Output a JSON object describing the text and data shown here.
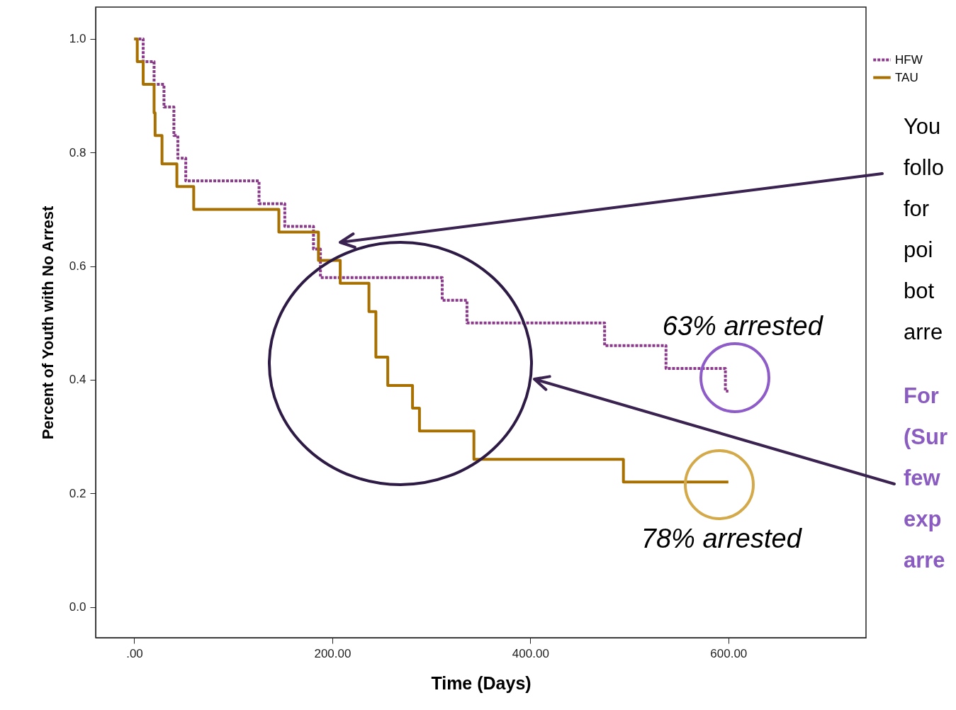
{
  "chart_data": {
    "type": "step",
    "xlabel": "Time (Days)",
    "ylabel": "Percent of Youth with No Arrest",
    "xlim": [
      -39,
      739
    ],
    "ylim": [
      -0.054,
      1.056
    ],
    "xticks": [
      {
        "value": 0,
        "label": ".00"
      },
      {
        "value": 200,
        "label": "200.00"
      },
      {
        "value": 400,
        "label": "400.00"
      },
      {
        "value": 600,
        "label": "600.00"
      }
    ],
    "yticks": [
      {
        "value": 0,
        "label": "0.0"
      },
      0.2,
      0.4,
      0.6,
      0.8,
      {
        "value": 1,
        "label": "1.0"
      }
    ],
    "legend": "top right",
    "grid": false,
    "series": [
      {
        "name": "HFW",
        "color": "#8b3a8b",
        "line_style": "dotted",
        "x": [
          0,
          9,
          20,
          30,
          40,
          44,
          52,
          126,
          152,
          181,
          188,
          311,
          336,
          475,
          537,
          597,
          600
        ],
        "values": [
          1.0,
          0.96,
          0.92,
          0.88,
          0.83,
          0.79,
          0.75,
          0.71,
          0.67,
          0.63,
          0.58,
          0.54,
          0.5,
          0.46,
          0.42,
          0.38,
          0.38
        ]
      },
      {
        "name": "TAU",
        "color": "#a87000",
        "line_style": "solid",
        "x": [
          0,
          3,
          9,
          20,
          21,
          28,
          43,
          60,
          146,
          186,
          208,
          237,
          244,
          256,
          281,
          288,
          343,
          494,
          600
        ],
        "values": [
          1.0,
          0.96,
          0.92,
          0.87,
          0.83,
          0.78,
          0.74,
          0.7,
          0.66,
          0.61,
          0.57,
          0.52,
          0.44,
          0.39,
          0.35,
          0.31,
          0.26,
          0.22,
          0.22
        ]
      }
    ],
    "annotations": [
      {
        "text": "63% arrested",
        "x": 600,
        "y": 0.38
      },
      {
        "text": "78% arrested",
        "x": 600,
        "y": 0.22
      },
      "You\nfollo\nfor\npoi\nbot\narre",
      "For\n(Sur\nfew\nexp\narre"
    ]
  }
}
